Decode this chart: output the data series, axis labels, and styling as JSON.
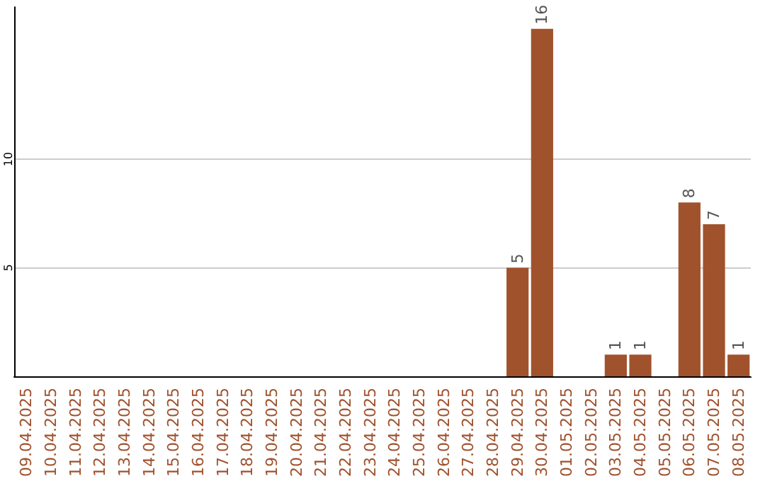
{
  "chart_data": {
    "type": "bar",
    "categories": [
      "09.04.2025",
      "10.04.2025",
      "11.04.2025",
      "12.04.2025",
      "13.04.2025",
      "14.04.2025",
      "15.04.2025",
      "16.04.2025",
      "17.04.2025",
      "18.04.2025",
      "19.04.2025",
      "20.04.2025",
      "21.04.2025",
      "22.04.2025",
      "23.04.2025",
      "24.04.2025",
      "25.04.2025",
      "26.04.2025",
      "27.04.2025",
      "28.04.2025",
      "29.04.2025",
      "30.04.2025",
      "01.05.2025",
      "02.05.2025",
      "03.05.2025",
      "04.05.2025",
      "05.05.2025",
      "06.05.2025",
      "07.05.2025",
      "08.05.2025"
    ],
    "values": [
      0,
      0,
      0,
      0,
      0,
      0,
      0,
      0,
      0,
      0,
      0,
      0,
      0,
      0,
      0,
      0,
      0,
      0,
      0,
      0,
      5,
      16,
      0,
      0,
      1,
      1,
      0,
      8,
      7,
      1
    ],
    "value_labels": [
      null,
      null,
      null,
      null,
      null,
      null,
      null,
      null,
      null,
      null,
      null,
      null,
      null,
      null,
      null,
      null,
      null,
      null,
      null,
      null,
      "5",
      "16",
      null,
      null,
      "1",
      "1",
      null,
      "8",
      "7",
      "1"
    ],
    "color": "#a0522d",
    "ylim": [
      0,
      17
    ],
    "yticks": [
      5,
      10
    ],
    "grid": "y"
  }
}
